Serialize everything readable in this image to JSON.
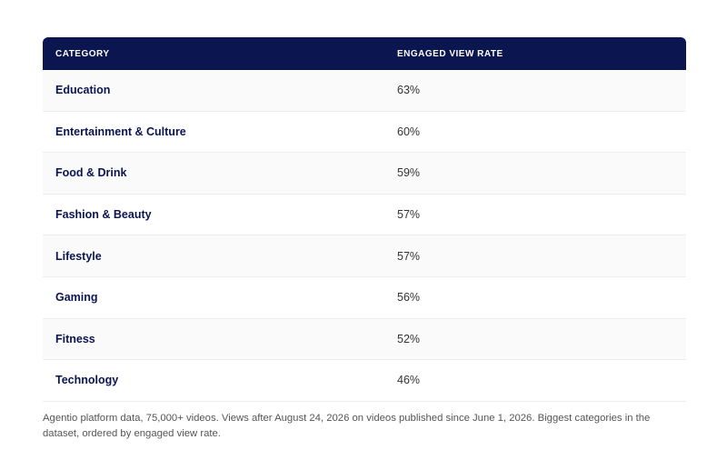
{
  "table": {
    "header": [
      "CATEGORY",
      "ENGAGED VIEW RATE"
    ],
    "rows": [
      [
        "Education",
        "63%"
      ],
      [
        "Entertainment & Culture",
        "60%"
      ],
      [
        "Food & Drink",
        "59%"
      ],
      [
        "Fashion & Beauty",
        "57%"
      ],
      [
        "Lifestyle",
        "57%"
      ],
      [
        "Gaming",
        "56%"
      ],
      [
        "Fitness",
        "52%"
      ],
      [
        "Technology",
        "46%"
      ]
    ]
  },
  "caption": "Agentio platform data, 75,000+ videos. Views after August 24, 2026 on videos published since June 1, 2026. Biggest categories in the dataset, ordered by engaged view rate."
}
